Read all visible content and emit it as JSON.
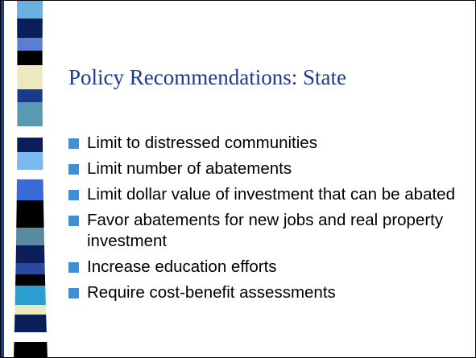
{
  "title": "Policy Recommendations: State",
  "bullets": [
    "Limit to distressed communities",
    "Limit number of abatements",
    "Limit dollar value of investment that can be abated",
    "Favor abatements for new jobs and real property investment",
    "Increase education efforts",
    "Require cost-benefit assessments"
  ]
}
